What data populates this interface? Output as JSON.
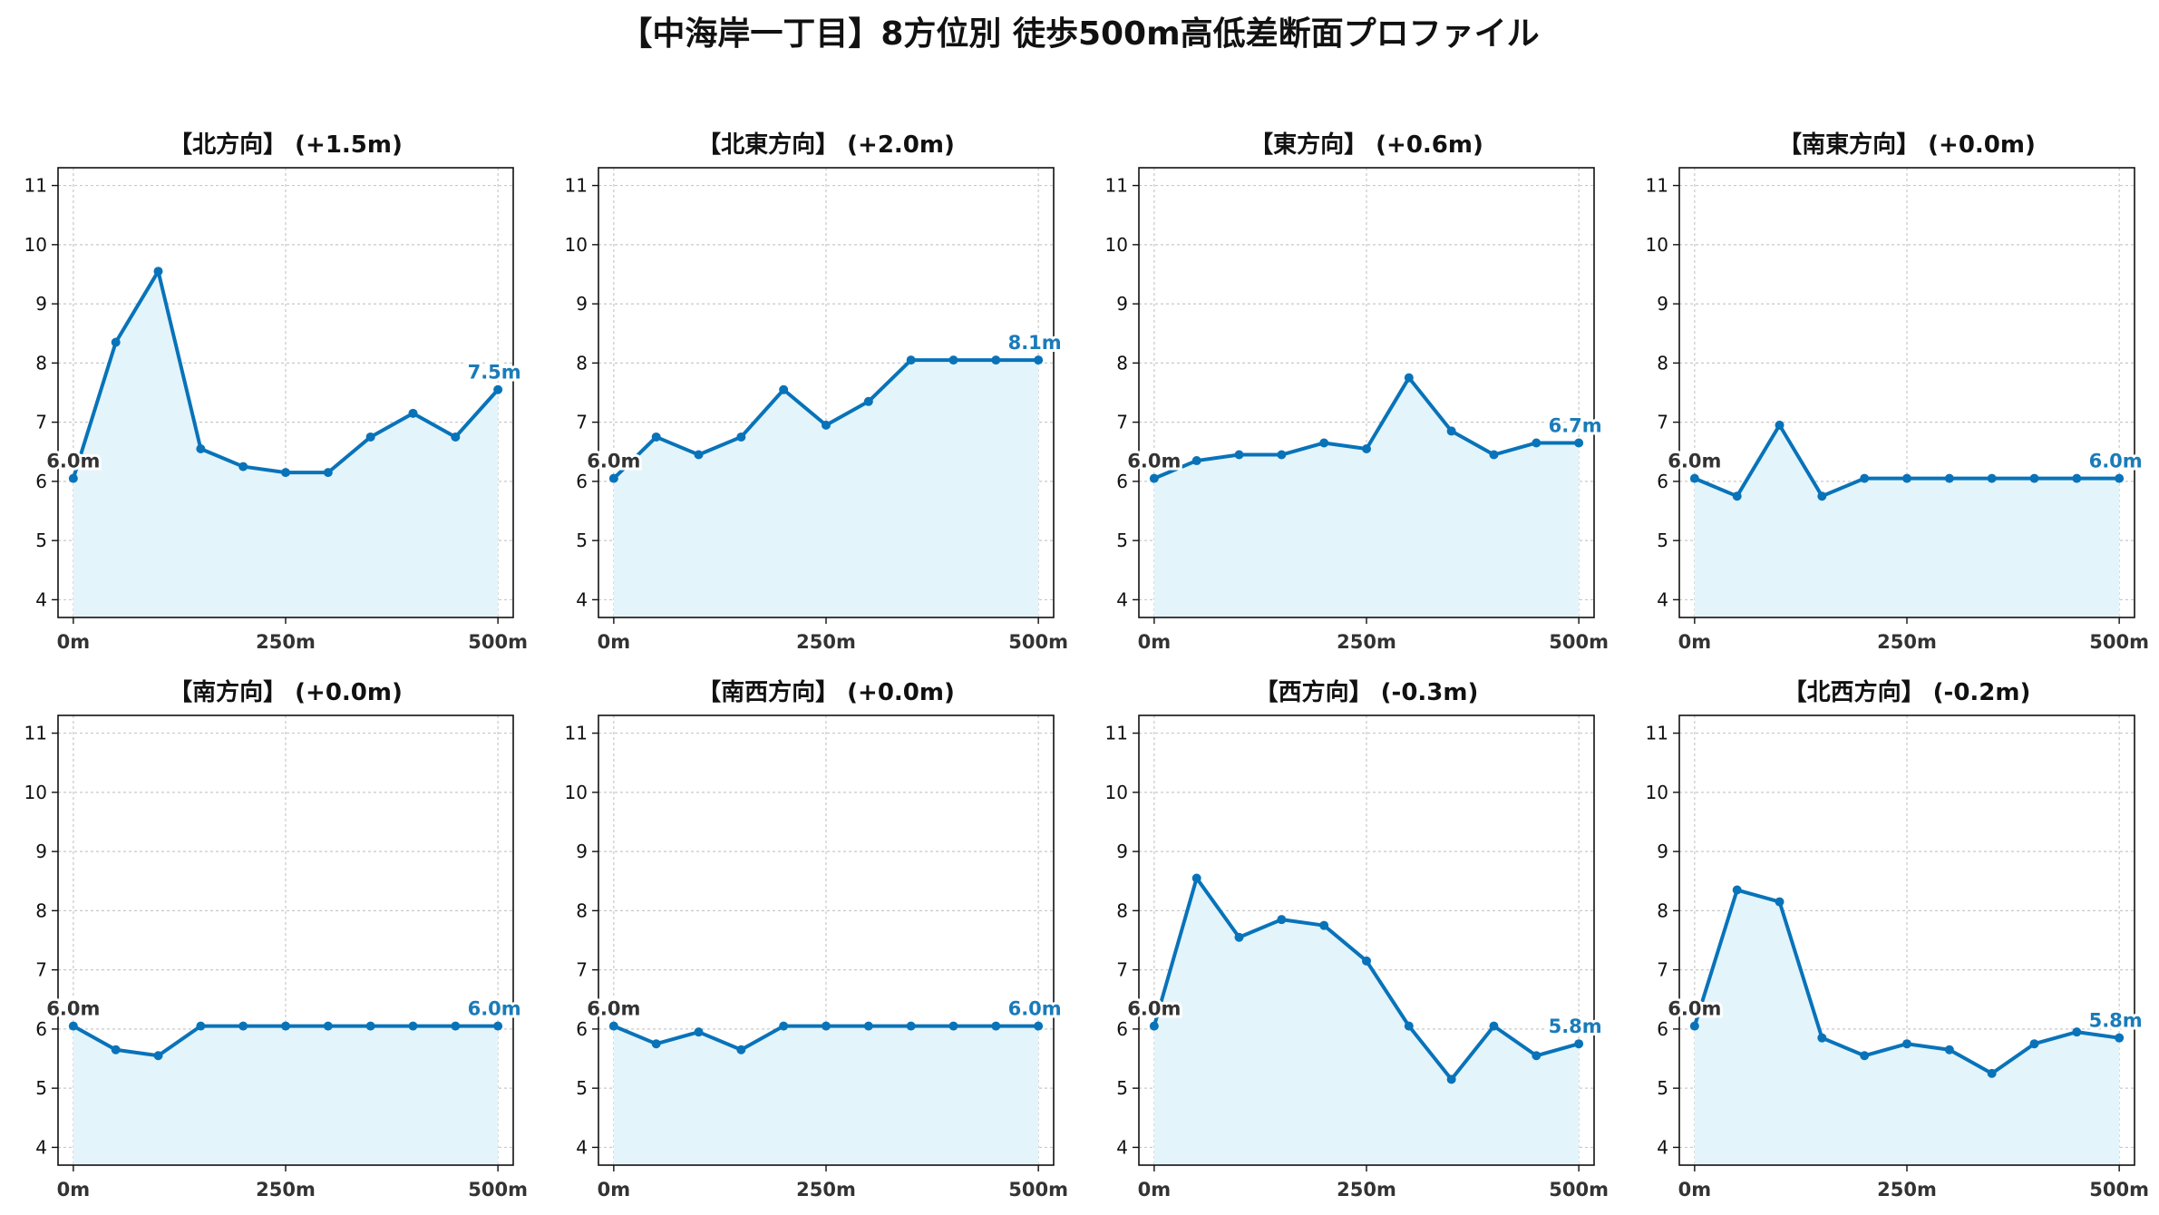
{
  "title": "【中海岸一丁目】8方位別 徒歩500m高低差断面プロファイル",
  "colors": {
    "line": "#0873b9",
    "fill": "#e4f4fb",
    "grid": "#c8c8c8",
    "start_label": "#333333",
    "end_label": "#1a7bb9"
  },
  "chart_data": [
    {
      "type": "area",
      "title": "【北方向】 (+1.5m)",
      "x": [
        0,
        50,
        100,
        150,
        200,
        250,
        300,
        350,
        400,
        450,
        500
      ],
      "values": [
        6.05,
        8.35,
        9.55,
        6.55,
        6.25,
        6.15,
        6.15,
        6.75,
        7.15,
        6.75,
        7.55
      ],
      "start_label": "6.0m",
      "end_label": "7.5m"
    },
    {
      "type": "area",
      "title": "【北東方向】 (+2.0m)",
      "x": [
        0,
        50,
        100,
        150,
        200,
        250,
        300,
        350,
        400,
        450,
        500
      ],
      "values": [
        6.05,
        6.75,
        6.45,
        6.75,
        7.55,
        6.95,
        7.35,
        8.05,
        8.05,
        8.05,
        8.05
      ],
      "start_label": "6.0m",
      "end_label": "8.1m"
    },
    {
      "type": "area",
      "title": "【東方向】 (+0.6m)",
      "x": [
        0,
        50,
        100,
        150,
        200,
        250,
        300,
        350,
        400,
        450,
        500
      ],
      "values": [
        6.05,
        6.35,
        6.45,
        6.45,
        6.65,
        6.55,
        7.75,
        6.85,
        6.45,
        6.65,
        6.65
      ],
      "start_label": "6.0m",
      "end_label": "6.7m"
    },
    {
      "type": "area",
      "title": "【南東方向】 (+0.0m)",
      "x": [
        0,
        50,
        100,
        150,
        200,
        250,
        300,
        350,
        400,
        450,
        500
      ],
      "values": [
        6.05,
        5.75,
        6.95,
        5.75,
        6.05,
        6.05,
        6.05,
        6.05,
        6.05,
        6.05,
        6.05
      ],
      "start_label": "6.0m",
      "end_label": "6.0m"
    },
    {
      "type": "area",
      "title": "【南方向】 (+0.0m)",
      "x": [
        0,
        50,
        100,
        150,
        200,
        250,
        300,
        350,
        400,
        450,
        500
      ],
      "values": [
        6.05,
        5.65,
        5.55,
        6.05,
        6.05,
        6.05,
        6.05,
        6.05,
        6.05,
        6.05,
        6.05
      ],
      "start_label": "6.0m",
      "end_label": "6.0m"
    },
    {
      "type": "area",
      "title": "【南西方向】 (+0.0m)",
      "x": [
        0,
        50,
        100,
        150,
        200,
        250,
        300,
        350,
        400,
        450,
        500
      ],
      "values": [
        6.05,
        5.75,
        5.95,
        5.65,
        6.05,
        6.05,
        6.05,
        6.05,
        6.05,
        6.05,
        6.05
      ],
      "start_label": "6.0m",
      "end_label": "6.0m"
    },
    {
      "type": "area",
      "title": "【西方向】 (-0.3m)",
      "x": [
        0,
        50,
        100,
        150,
        200,
        250,
        300,
        350,
        400,
        450,
        500
      ],
      "values": [
        6.05,
        8.55,
        7.55,
        7.85,
        7.75,
        7.15,
        6.05,
        5.15,
        6.05,
        5.55,
        5.75
      ],
      "start_label": "6.0m",
      "end_label": "5.8m"
    },
    {
      "type": "area",
      "title": "【北西方向】 (-0.2m)",
      "x": [
        0,
        50,
        100,
        150,
        200,
        250,
        300,
        350,
        400,
        450,
        500
      ],
      "values": [
        6.05,
        8.35,
        8.15,
        5.85,
        5.55,
        5.75,
        5.65,
        5.25,
        5.75,
        5.95,
        5.85
      ],
      "start_label": "6.0m",
      "end_label": "5.8m"
    }
  ],
  "axis": {
    "y_ticks": [
      4,
      5,
      6,
      7,
      8,
      9,
      10,
      11
    ],
    "y_tick_labels": [
      "4",
      "5",
      "6",
      "7",
      "8",
      "9",
      "10",
      "11"
    ],
    "ylim": [
      3.7,
      11.3
    ],
    "x_ticks": [
      0,
      250,
      500
    ],
    "x_tick_labels": [
      "0m",
      "250m",
      "500m"
    ],
    "xlim": [
      -18,
      518
    ],
    "grid": true
  }
}
